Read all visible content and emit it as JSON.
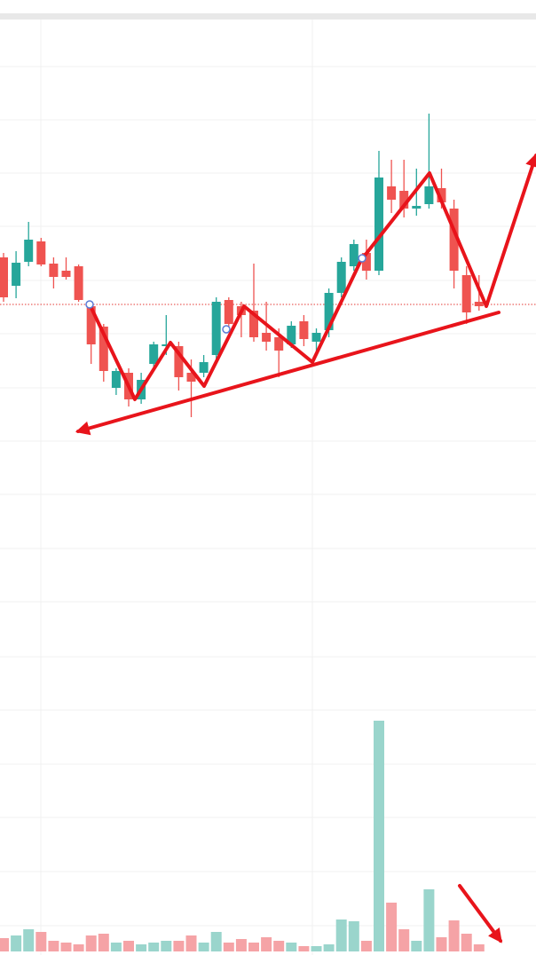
{
  "chart_data": {
    "type": "candlestick",
    "categories": [
      null,
      null,
      null,
      null,
      null,
      null,
      null,
      null,
      null,
      null,
      null,
      null,
      null,
      null,
      null,
      null,
      null,
      null,
      null,
      null,
      null,
      null,
      null,
      null,
      null,
      null,
      null,
      null,
      null,
      null,
      null,
      null,
      null,
      null,
      null,
      null,
      null,
      null,
      null
    ],
    "open": [
      786,
      754,
      781,
      804,
      779,
      771,
      776,
      731,
      708,
      639,
      656,
      626,
      666,
      686,
      686,
      656,
      656,
      676,
      738,
      731,
      726,
      701,
      696,
      688,
      714,
      691,
      704,
      746,
      776,
      791,
      771,
      866,
      861,
      841,
      846,
      864,
      841,
      766,
      736
    ],
    "close": [
      741,
      780,
      806,
      778,
      764,
      764,
      738,
      688,
      658,
      658,
      626,
      648,
      688,
      688,
      651,
      646,
      668,
      736,
      711,
      721,
      696,
      691,
      681,
      709,
      694,
      701,
      746,
      781,
      801,
      771,
      876,
      851,
      841,
      844,
      866,
      848,
      771,
      724,
      731
    ],
    "high": [
      791,
      793,
      826,
      808,
      786,
      786,
      778,
      736,
      711,
      661,
      661,
      656,
      691,
      721,
      691,
      671,
      676,
      741,
      741,
      736,
      779,
      736,
      706,
      714,
      721,
      706,
      751,
      786,
      806,
      806,
      906,
      896,
      896,
      886,
      948,
      886,
      851,
      776,
      766
    ],
    "low": [
      736,
      740,
      776,
      776,
      751,
      761,
      736,
      666,
      646,
      631,
      618,
      621,
      661,
      676,
      636,
      606,
      651,
      671,
      706,
      696,
      691,
      681,
      651,
      684,
      686,
      676,
      696,
      741,
      771,
      761,
      766,
      836,
      831,
      833,
      841,
      841,
      751,
      711,
      726
    ],
    "up_color": "#26a69a",
    "down_color": "#ef5350",
    "ylim": [
      0,
      1076
    ],
    "yticks": [
      33,
      94,
      155,
      215,
      276,
      336,
      398,
      458,
      519,
      579,
      639,
      700,
      760,
      821,
      881,
      941,
      1001
    ],
    "grid": true,
    "price_line": 733,
    "price_line_color": "#e53935",
    "volume": {
      "values": [
        15,
        18,
        25,
        22,
        12,
        10,
        8,
        18,
        20,
        10,
        12,
        8,
        10,
        12,
        12,
        18,
        10,
        22,
        10,
        14,
        10,
        16,
        12,
        10,
        6,
        6,
        8,
        36,
        34,
        12,
        260,
        55,
        25,
        12,
        70,
        16,
        35,
        20,
        8
      ],
      "axis": "y2",
      "up_color": "#9ad5cc",
      "down_color": "#f5a3a6"
    },
    "y2lim": [
      0,
      290
    ]
  }
}
